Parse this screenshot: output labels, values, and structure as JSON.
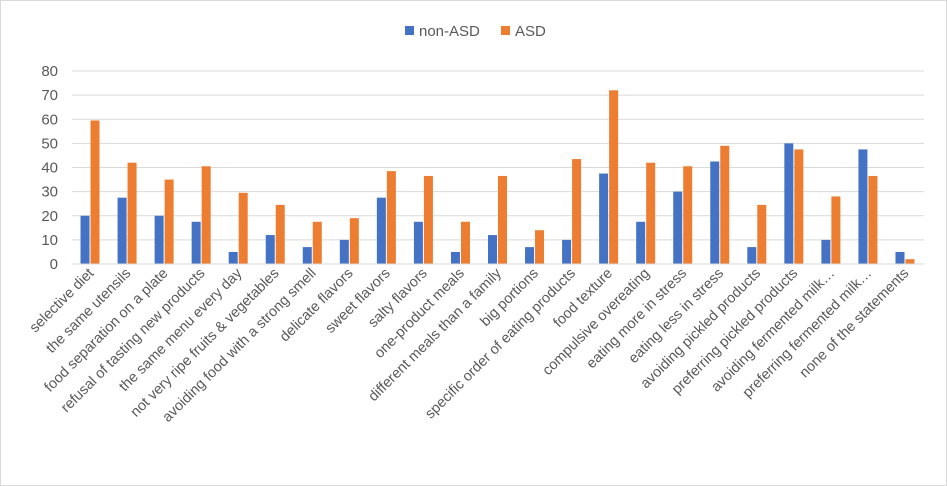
{
  "chart_data": {
    "type": "bar",
    "title": "",
    "xlabel": "",
    "ylabel": "",
    "ylim": [
      0,
      80
    ],
    "yticks": [
      0,
      10,
      20,
      30,
      40,
      50,
      60,
      70,
      80
    ],
    "grid": true,
    "legend_position": "top-center",
    "categories": [
      "selective diet",
      "the same utensils",
      "food separation on a plate",
      "refusal of tasting new products",
      "the same menu every day",
      "not very ripe fruits & vegetables",
      "avoiding food with a strong smell",
      "delicate flavors",
      "sweet flavors",
      "salty flavors",
      "one-product meals",
      "different meals than a family",
      "big portions",
      "specific order of eating products",
      "food texture",
      "compulsive overeating",
      "eating more in stress",
      "eating less in stress",
      "avoiding pickled products",
      "preferring pickled products",
      "avoiding fermented milk…",
      "preferring fermented milk…",
      "none of the statements"
    ],
    "series": [
      {
        "name": "non-ASD",
        "color": "#4472c4",
        "values": [
          20,
          27.5,
          20,
          17.5,
          5,
          12,
          7,
          10,
          27.5,
          17.5,
          5,
          12,
          7,
          10,
          37.5,
          17.5,
          30,
          42.5,
          7,
          50,
          10,
          47.5,
          5
        ]
      },
      {
        "name": "ASD",
        "color": "#ed7d31",
        "values": [
          59.5,
          42,
          35,
          40.5,
          29.5,
          24.5,
          17.5,
          19,
          38.5,
          36.5,
          17.5,
          36.5,
          14,
          43.5,
          72,
          42,
          40.5,
          49,
          24.5,
          47.5,
          28,
          36.5,
          2
        ]
      }
    ]
  }
}
